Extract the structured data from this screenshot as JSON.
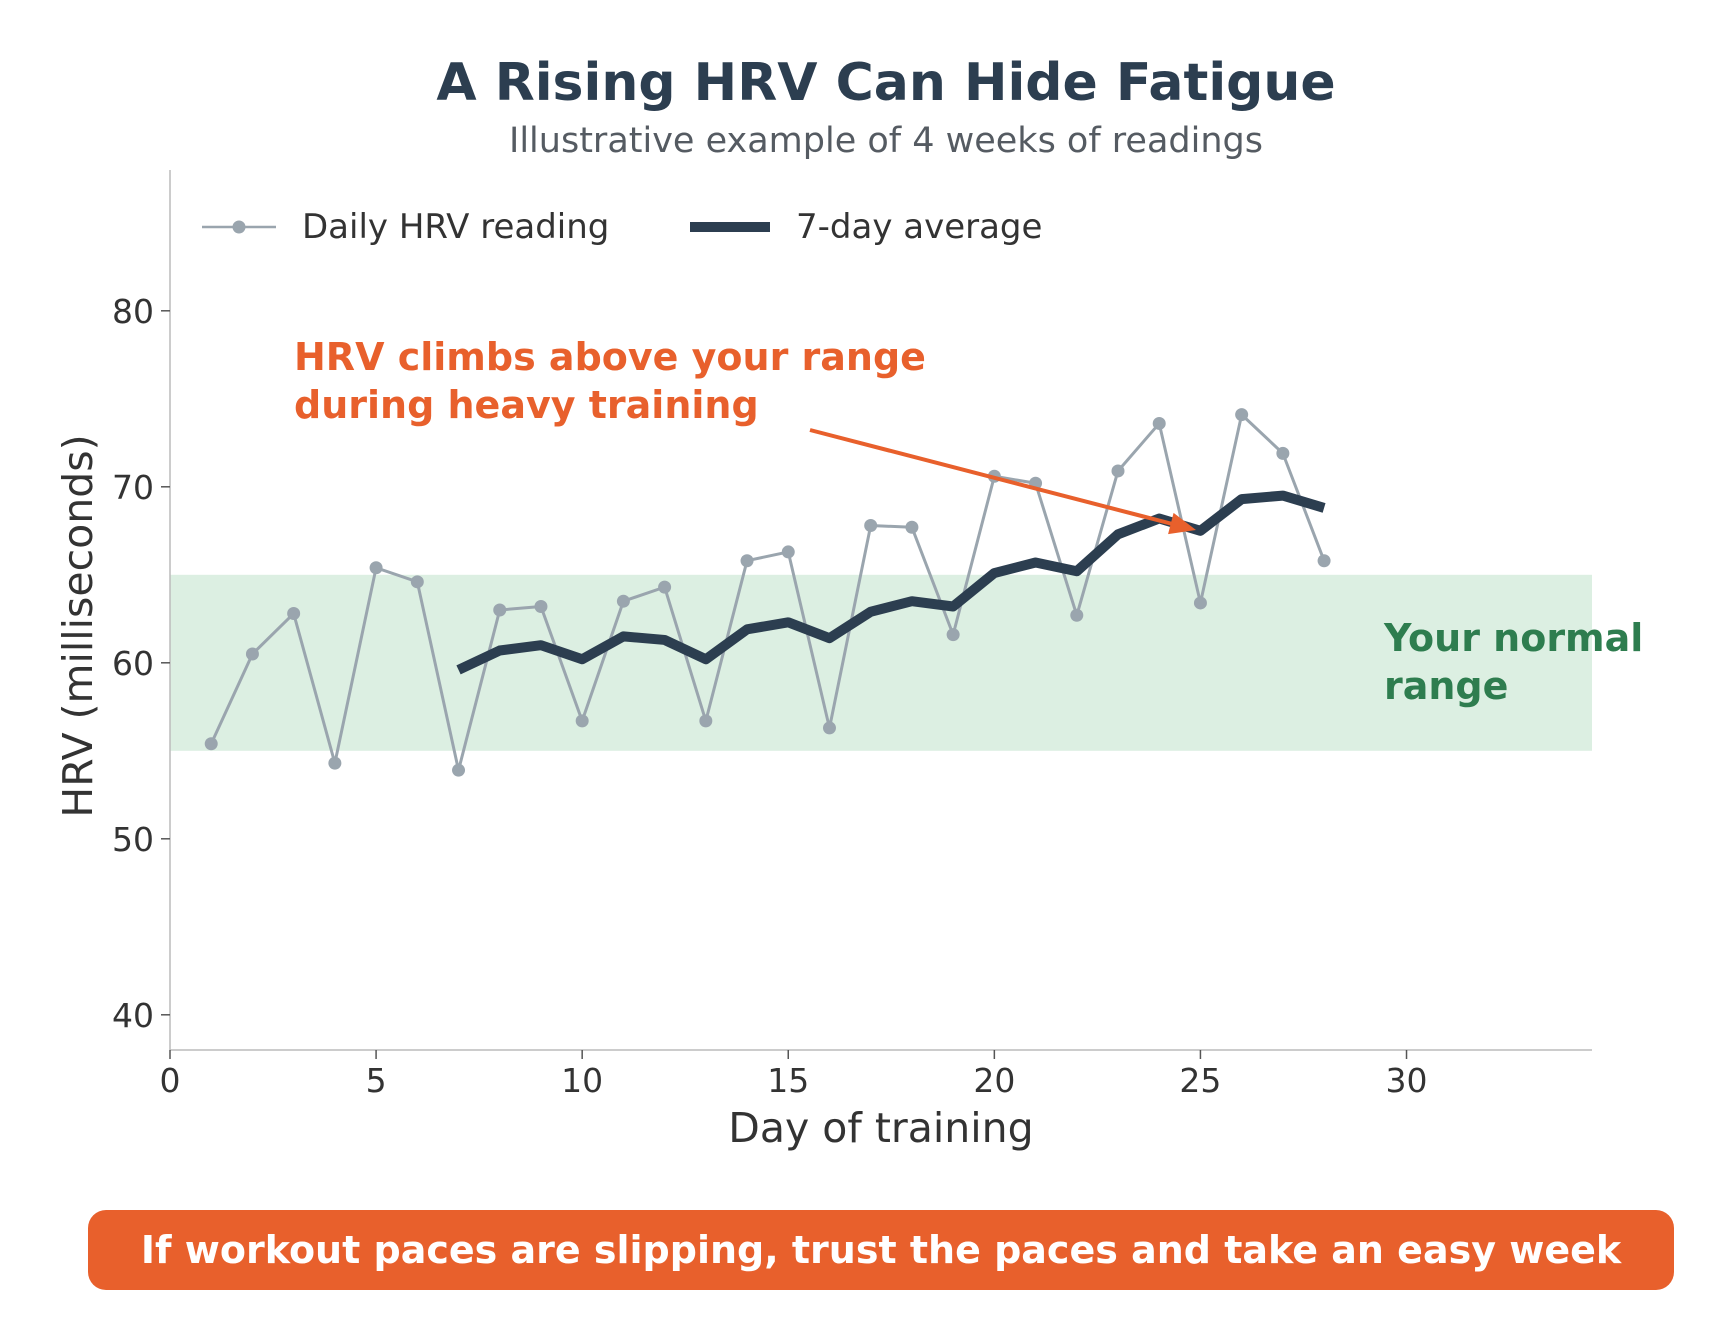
{
  "title": "A Rising HRV Can Hide Fatigue",
  "subtitle": "Illustrative example of 4 weeks of readings",
  "annotation": {
    "line1": "HRV climbs above your range",
    "line2": "during heavy training",
    "color": "#e8602c"
  },
  "range_label": {
    "line1": "Your normal",
    "line2": "range",
    "color": "#2e7d4f"
  },
  "banner": "If workout paces are slipping, trust the paces and take an easy week",
  "colors": {
    "daily": "#9aa5ae",
    "average": "#2c3e50",
    "range_fill": "#dcefe2",
    "accent": "#e8602c",
    "axis": "#bbbbbb"
  },
  "chart_data": {
    "type": "line",
    "xlabel": "Day of training",
    "ylabel": "HRV (milliseconds)",
    "xlim": [
      0,
      34.5
    ],
    "ylim": [
      38,
      88
    ],
    "xticks": [
      0,
      5,
      10,
      15,
      20,
      25,
      30
    ],
    "yticks": [
      40,
      50,
      60,
      70,
      80
    ],
    "grid": false,
    "legend_position": "top-left",
    "normal_range": [
      55,
      65
    ],
    "series": [
      {
        "name": "Daily HRV reading",
        "style": "thin line with dot markers",
        "x": [
          1,
          2,
          3,
          4,
          5,
          6,
          7,
          8,
          9,
          10,
          11,
          12,
          13,
          14,
          15,
          16,
          17,
          18,
          19,
          20,
          21,
          22,
          23,
          24,
          25,
          26,
          27,
          28
        ],
        "y": [
          55.4,
          60.5,
          62.8,
          54.3,
          65.4,
          64.6,
          53.9,
          63.0,
          63.2,
          56.7,
          63.5,
          64.3,
          56.7,
          65.8,
          66.3,
          56.3,
          67.8,
          67.7,
          61.6,
          70.6,
          70.2,
          62.7,
          70.9,
          73.6,
          63.4,
          74.1,
          71.9,
          65.8
        ]
      },
      {
        "name": "7-day average",
        "style": "thick line",
        "x": [
          7,
          8,
          9,
          10,
          11,
          12,
          13,
          14,
          15,
          16,
          17,
          18,
          19,
          20,
          21,
          22,
          23,
          24,
          25,
          26,
          27,
          28
        ],
        "y": [
          59.6,
          60.7,
          61.0,
          60.2,
          61.5,
          61.3,
          60.2,
          61.9,
          62.3,
          61.4,
          62.9,
          63.5,
          63.2,
          65.1,
          65.7,
          65.2,
          67.3,
          68.2,
          67.5,
          69.3,
          69.5,
          68.8
        ]
      }
    ]
  }
}
